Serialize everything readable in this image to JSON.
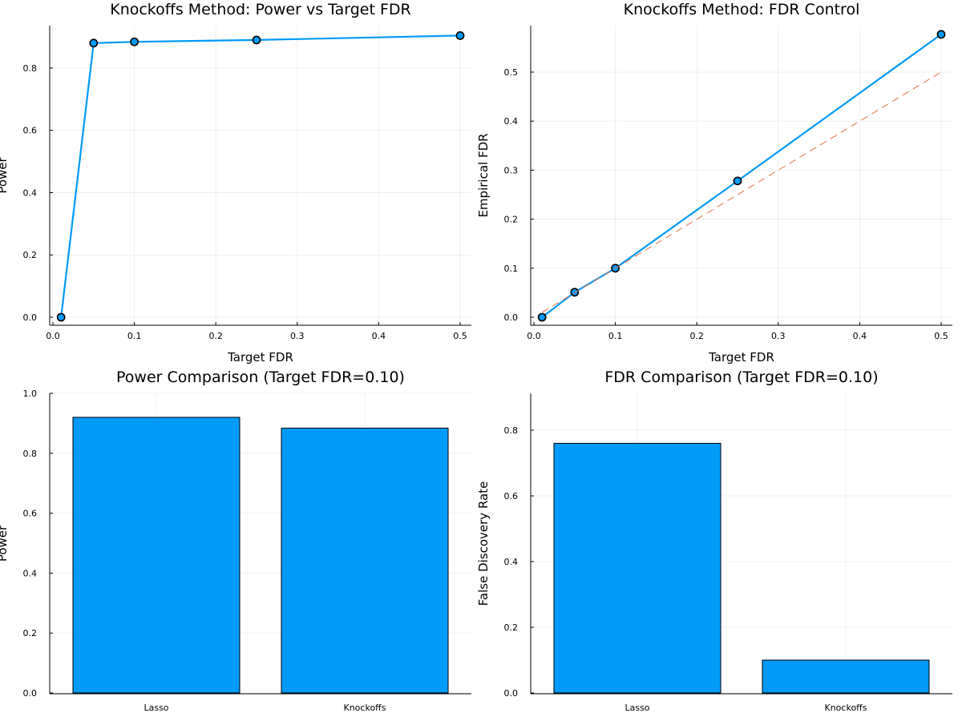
{
  "colors": {
    "series": "#009AF9",
    "reference": "#E26F46",
    "marker_edge": "#000000",
    "grid": "#E6E6E6"
  },
  "chart_data": [
    {
      "type": "line",
      "title": "Knockoffs Method: Power vs Target FDR",
      "xlabel": "Target FDR",
      "ylabel": "Power",
      "xlim": [
        0.0,
        0.5
      ],
      "ylim": [
        0.0,
        0.9
      ],
      "xticks": [
        0.0,
        0.1,
        0.2,
        0.3,
        0.4,
        0.5
      ],
      "xtick_labels": [
        "0.0",
        "0.1",
        "0.2",
        "0.3",
        "0.4",
        "0.5"
      ],
      "yticks": [
        0.0,
        0.2,
        0.4,
        0.6,
        0.8
      ],
      "ytick_labels": [
        "0.0",
        "0.2",
        "0.4",
        "0.6",
        "0.8"
      ],
      "grid": true,
      "markers": true,
      "series": [
        {
          "x": [
            0.01,
            0.05,
            0.1,
            0.25,
            0.5
          ],
          "values": [
            0.0,
            0.88,
            0.884,
            0.89,
            0.904
          ]
        }
      ]
    },
    {
      "type": "line",
      "title": "Knockoffs Method: FDR Control",
      "xlabel": "Target FDR",
      "ylabel": "Empirical FDR",
      "xlim": [
        0.0,
        0.5
      ],
      "ylim": [
        0.0,
        0.58
      ],
      "xticks": [
        0.0,
        0.1,
        0.2,
        0.3,
        0.4,
        0.5
      ],
      "xtick_labels": [
        "0.0",
        "0.1",
        "0.2",
        "0.3",
        "0.4",
        "0.5"
      ],
      "yticks": [
        0.0,
        0.1,
        0.2,
        0.3,
        0.4,
        0.5
      ],
      "ytick_labels": [
        "0.0",
        "0.1",
        "0.2",
        "0.3",
        "0.4",
        "0.5"
      ],
      "grid": true,
      "markers": true,
      "series": [
        {
          "x": [
            0.01,
            0.05,
            0.1,
            0.25,
            0.5
          ],
          "values": [
            0.0,
            0.051,
            0.1,
            0.278,
            0.577
          ]
        },
        {
          "x": [
            0.01,
            0.5
          ],
          "values": [
            0.01,
            0.5
          ],
          "style": "dashed",
          "markers": false
        }
      ]
    },
    {
      "type": "bar",
      "title": "Power Comparison (Target FDR=0.10)",
      "xlabel": "",
      "ylabel": "Power",
      "categories": [
        "Lasso",
        "Knockoffs"
      ],
      "values": [
        0.92,
        0.884
      ],
      "ylim": [
        0.0,
        1.0
      ],
      "yticks": [
        0.0,
        0.2,
        0.4,
        0.6,
        0.8,
        1.0
      ],
      "ytick_labels": [
        "0.0",
        "0.2",
        "0.4",
        "0.6",
        "0.8",
        "1.0"
      ],
      "grid": true
    },
    {
      "type": "bar",
      "title": "FDR Comparison (Target FDR=0.10)",
      "xlabel": "",
      "ylabel": "False Discovery Rate",
      "categories": [
        "Lasso",
        "Knockoffs"
      ],
      "values": [
        0.76,
        0.1
      ],
      "ylim": [
        0.0,
        0.8
      ],
      "yticks": [
        0.0,
        0.2,
        0.4,
        0.6,
        0.8
      ],
      "ytick_labels": [
        "0.0",
        "0.2",
        "0.4",
        "0.6",
        "0.8"
      ],
      "grid": true
    }
  ]
}
